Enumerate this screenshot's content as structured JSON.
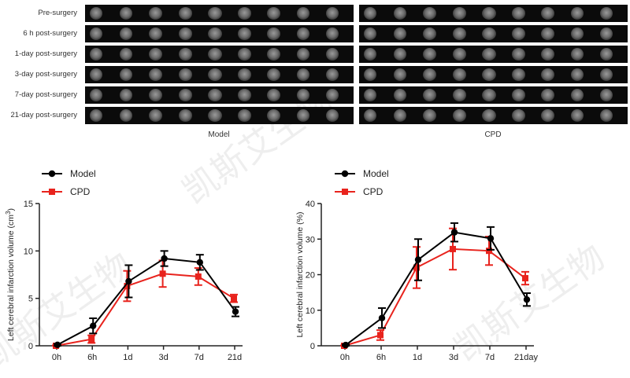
{
  "mri": {
    "rows": [
      "Pre-surgery",
      "6 h post-surgery",
      "1-day post-surgery",
      "3-day post-surgery",
      "7-day post-surgery",
      "21-day post-surgery"
    ],
    "panels": [
      "Model",
      "CPD"
    ]
  },
  "watermark": "凯斯艾生物",
  "colors": {
    "model": "#000000",
    "cpd": "#e8231d"
  },
  "chart_data": [
    {
      "type": "line",
      "categories": [
        "0h",
        "6h",
        "1d",
        "3d",
        "7d",
        "21d"
      ],
      "ylabel": "Left cerebral infarction volume (cm³)",
      "ylabel_main": "Left cerebral infarction volume (cm",
      "ylabel_sup": "3",
      "ylabel_end": ")",
      "ylim": [
        0,
        15
      ],
      "yticks": [
        0,
        5,
        10,
        15
      ],
      "legend": "top-left",
      "series": [
        {
          "name": "Model",
          "values": [
            0.1,
            2.1,
            6.8,
            9.2,
            8.8,
            3.6
          ],
          "errors": [
            0.1,
            0.8,
            1.7,
            0.8,
            0.8,
            0.5
          ]
        },
        {
          "name": "CPD",
          "values": [
            0.0,
            0.7,
            6.3,
            7.6,
            7.3,
            5.0
          ],
          "errors": [
            0.05,
            0.4,
            1.6,
            1.4,
            0.9,
            0.4
          ]
        }
      ]
    },
    {
      "type": "line",
      "categories": [
        "0h",
        "6h",
        "1d",
        "3d",
        "7d",
        "21day"
      ],
      "ylabel": "Left cerebral infarction volume (%)",
      "ylim": [
        0,
        40
      ],
      "yticks": [
        0,
        10,
        20,
        30,
        40
      ],
      "legend": "top-left",
      "series": [
        {
          "name": "Model",
          "values": [
            0.2,
            7.8,
            24.2,
            31.9,
            30.2,
            13.0
          ],
          "errors": [
            0.2,
            2.8,
            5.8,
            2.6,
            3.2,
            1.8
          ]
        },
        {
          "name": "CPD",
          "values": [
            0.0,
            3.0,
            22.0,
            27.2,
            26.7,
            19.0
          ],
          "errors": [
            0.1,
            1.4,
            5.8,
            5.8,
            4.0,
            1.8
          ]
        }
      ]
    }
  ]
}
